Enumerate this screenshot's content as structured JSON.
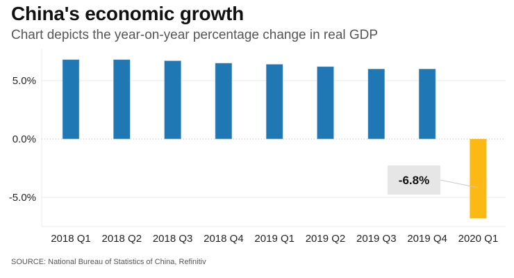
{
  "header": {
    "title": "China's economic growth",
    "subtitle": "Chart depicts the year-on-year percentage change in real GDP"
  },
  "footer": {
    "source": "SOURCE: National Bureau of Statistics of China, Refinitiv"
  },
  "chart_data": {
    "type": "bar",
    "title": "China's economic growth",
    "subtitle": "Chart depicts the year-on-year percentage change in real GDP",
    "xlabel": "",
    "ylabel": "",
    "categories": [
      "2018 Q1",
      "2018 Q2",
      "2018 Q3",
      "2018 Q4",
      "2019 Q1",
      "2019 Q2",
      "2019 Q3",
      "2019 Q4",
      "2020 Q1"
    ],
    "values": [
      6.8,
      6.8,
      6.7,
      6.5,
      6.4,
      6.2,
      6.0,
      6.0,
      -6.8
    ],
    "unit": "%",
    "ylim": [
      -7.5,
      7.5
    ],
    "yticks": [
      5.0,
      0.0,
      -5.0
    ],
    "ytick_labels": [
      "5.0%",
      "0.0%",
      "-5.0%"
    ],
    "grid": true,
    "colors": {
      "positive": "#1f77b4",
      "highlight": "#fdb913"
    },
    "highlight_index": 8,
    "annotation": {
      "text": "-6.8%",
      "target": "2020 Q1"
    },
    "legend": "none"
  }
}
